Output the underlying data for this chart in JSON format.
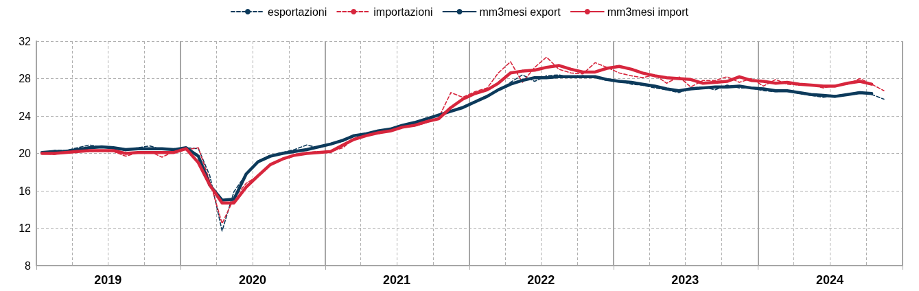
{
  "chart_data": {
    "type": "line",
    "x": [
      "2019-01-15",
      "2019-02-15",
      "2019-03-15",
      "2019-04-15",
      "2019-05-15",
      "2019-06-15",
      "2019-07-15",
      "2019-08-15",
      "2019-09-15",
      "2019-10-15",
      "2019-11-15",
      "2019-12-15",
      "2020-01-15",
      "2020-02-15",
      "2020-03-15",
      "2020-04-15",
      "2020-05-15",
      "2020-06-15",
      "2020-07-15",
      "2020-08-15",
      "2020-09-15",
      "2020-10-15",
      "2020-11-15",
      "2020-12-15",
      "2021-01-15",
      "2021-02-15",
      "2021-03-15",
      "2021-04-15",
      "2021-05-15",
      "2021-06-15",
      "2021-07-15",
      "2021-08-15",
      "2021-09-15",
      "2021-10-15",
      "2021-11-15",
      "2021-12-15",
      "2022-01-15",
      "2022-02-15",
      "2022-03-15",
      "2022-04-15",
      "2022-05-15",
      "2022-06-15",
      "2022-07-15",
      "2022-08-15",
      "2022-09-15",
      "2022-10-15",
      "2022-11-15",
      "2022-12-15",
      "2023-01-15",
      "2023-02-15",
      "2023-03-15",
      "2023-04-15",
      "2023-05-15",
      "2023-06-15",
      "2023-07-15",
      "2023-08-15",
      "2023-09-15",
      "2023-10-15",
      "2023-11-15",
      "2023-12-15",
      "2024-01-15",
      "2024-02-15",
      "2024-03-15",
      "2024-04-15",
      "2024-05-15",
      "2024-06-15",
      "2024-07-15",
      "2024-08-15",
      "2024-09-15",
      "2024-10-15",
      "2024-11-15"
    ],
    "xlim": [
      "2019-01-01",
      "2025-01-01"
    ],
    "xticks": [
      {
        "value": "2019-01-01",
        "label": null
      },
      {
        "value": "2019-04-01",
        "label": null
      },
      {
        "value": "2019-07-01",
        "label": "2019"
      },
      {
        "value": "2019-10-01",
        "label": null
      },
      {
        "value": "2020-01-01",
        "label": null
      },
      {
        "value": "2020-04-01",
        "label": null
      },
      {
        "value": "2020-07-01",
        "label": "2020"
      },
      {
        "value": "2020-10-01",
        "label": null
      },
      {
        "value": "2021-01-01",
        "label": null
      },
      {
        "value": "2021-04-01",
        "label": null
      },
      {
        "value": "2021-07-01",
        "label": "2021"
      },
      {
        "value": "2021-10-01",
        "label": null
      },
      {
        "value": "2022-01-01",
        "label": null
      },
      {
        "value": "2022-04-01",
        "label": null
      },
      {
        "value": "2022-07-01",
        "label": "2022"
      },
      {
        "value": "2022-10-01",
        "label": null
      },
      {
        "value": "2023-01-01",
        "label": null
      },
      {
        "value": "2023-04-01",
        "label": null
      },
      {
        "value": "2023-07-01",
        "label": "2023"
      },
      {
        "value": "2023-10-01",
        "label": null
      },
      {
        "value": "2024-01-01",
        "label": null
      },
      {
        "value": "2024-04-01",
        "label": null
      },
      {
        "value": "2024-07-01",
        "label": "2024"
      },
      {
        "value": "2024-10-01",
        "label": null
      },
      {
        "value": "2025-01-01",
        "label": null
      }
    ],
    "ylim": [
      8,
      32
    ],
    "yticks": [
      8,
      12,
      16,
      20,
      24,
      28,
      32
    ],
    "grid": true,
    "legend": "top",
    "marker": "none",
    "series": [
      {
        "name": "esportazioni",
        "color": "#0c3a5b",
        "line_style": "dashed",
        "values": [
          20.0,
          20.3,
          20.3,
          20.6,
          20.9,
          20.7,
          20.5,
          20.3,
          20.6,
          20.8,
          20.4,
          20.4,
          20.6,
          20.5,
          17.6,
          11.7,
          15.9,
          17.8,
          19.2,
          19.8,
          20.1,
          20.4,
          20.9,
          20.6,
          21.0,
          21.3,
          22.0,
          22.0,
          22.3,
          22.6,
          23.0,
          23.3,
          23.8,
          24.0,
          24.5,
          25.0,
          25.6,
          26.2,
          26.7,
          27.6,
          28.4,
          27.7,
          28.3,
          28.4,
          28.1,
          28.3,
          28.1,
          27.8,
          27.8,
          27.4,
          27.3,
          27.0,
          26.8,
          26.5,
          27.0,
          27.1,
          26.8,
          27.3,
          27.0,
          27.0,
          26.7,
          26.6,
          26.7,
          26.4,
          26.2,
          26.0,
          26.2,
          26.3,
          26.6,
          26.3,
          25.8
        ]
      },
      {
        "name": "importazioni",
        "color": "#d7263d",
        "line_style": "dashed",
        "values": [
          20.0,
          19.9,
          20.1,
          20.3,
          20.2,
          20.3,
          20.2,
          19.7,
          20.1,
          20.2,
          19.6,
          20.2,
          20.4,
          20.6,
          17.0,
          12.5,
          15.2,
          16.8,
          17.6,
          18.8,
          19.4,
          19.8,
          20.1,
          20.2,
          20.2,
          20.6,
          21.6,
          22.0,
          22.1,
          22.4,
          22.9,
          22.9,
          23.3,
          23.8,
          26.5,
          26.0,
          26.6,
          27.0,
          28.6,
          29.8,
          27.6,
          29.2,
          30.3,
          29.0,
          28.6,
          28.5,
          29.7,
          29.2,
          28.6,
          28.3,
          28.1,
          28.4,
          27.5,
          28.2,
          27.1,
          27.8,
          27.8,
          28.2,
          27.6,
          28.0,
          27.2,
          27.9,
          27.4,
          27.3,
          27.3,
          27.0,
          27.3,
          27.4,
          28.0,
          27.4,
          26.7
        ]
      },
      {
        "name": "mm3mesi export",
        "color": "#0c3a5b",
        "line_style": "solid",
        "values": [
          20.1,
          20.2,
          20.2,
          20.4,
          20.6,
          20.7,
          20.6,
          20.4,
          20.5,
          20.5,
          20.5,
          20.4,
          20.6,
          19.7,
          16.6,
          15.0,
          15.1,
          17.8,
          19.1,
          19.7,
          20.0,
          20.2,
          20.4,
          20.7,
          21.0,
          21.4,
          21.9,
          22.1,
          22.4,
          22.6,
          23.0,
          23.3,
          23.7,
          24.1,
          24.5,
          24.9,
          25.5,
          26.1,
          26.8,
          27.4,
          27.8,
          28.1,
          28.1,
          28.2,
          28.2,
          28.2,
          28.2,
          27.9,
          27.7,
          27.6,
          27.4,
          27.2,
          26.9,
          26.7,
          26.9,
          27.0,
          27.1,
          27.1,
          27.2,
          27.0,
          26.9,
          26.7,
          26.7,
          26.5,
          26.3,
          26.2,
          26.1,
          26.3,
          26.5,
          26.4,
          null
        ]
      },
      {
        "name": "mm3mesi import",
        "color": "#d7263d",
        "line_style": "solid",
        "values": [
          20.0,
          20.0,
          20.1,
          20.2,
          20.3,
          20.3,
          20.3,
          20.0,
          20.1,
          20.1,
          20.1,
          20.1,
          20.5,
          19.0,
          16.6,
          14.7,
          14.7,
          16.4,
          17.6,
          18.8,
          19.4,
          19.8,
          20.0,
          20.1,
          20.2,
          20.9,
          21.5,
          21.9,
          22.2,
          22.4,
          22.8,
          23.0,
          23.4,
          23.7,
          24.9,
          25.8,
          26.4,
          26.8,
          27.5,
          28.6,
          28.8,
          28.9,
          29.2,
          29.4,
          29.0,
          28.7,
          28.7,
          29.1,
          29.3,
          29.0,
          28.6,
          28.3,
          28.1,
          28.0,
          27.9,
          27.5,
          27.6,
          27.7,
          28.2,
          27.8,
          27.7,
          27.5,
          27.6,
          27.4,
          27.3,
          27.2,
          27.2,
          27.5,
          27.7,
          27.4,
          null
        ]
      }
    ]
  }
}
